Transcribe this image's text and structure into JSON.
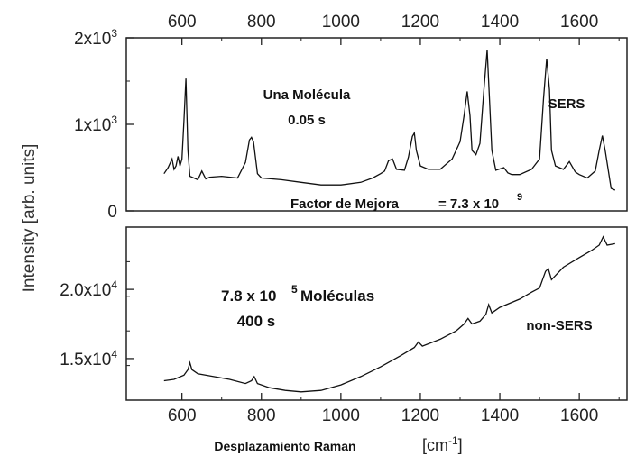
{
  "chart_data": {
    "type": "line",
    "xlabel": "Desplazamiento Raman",
    "xunit": "[cm-1]",
    "ylabel": "Intensity [arb. units]",
    "top_ticks": [
      "600",
      "800",
      "1000",
      "1200",
      "1400",
      "1600"
    ],
    "bottom_ticks": [
      "600",
      "800",
      "1000",
      "1200",
      "1400",
      "1600"
    ],
    "xlim": [
      460,
      1720
    ],
    "annotations": {
      "una_molecula": "Una Molécula",
      "time_single": "0.05 s",
      "sers": "SERS",
      "factor": "Factor de Mejora",
      "factor_value": "= 7.3 x 10",
      "factor_exp": "9",
      "molecules_base": "7.8 x 10",
      "molecules_exp": "5",
      "molecules_word": "Moléculas",
      "time_many": "400 s",
      "non_sers": "non-SERS"
    },
    "panels": [
      {
        "name": "SERS",
        "ylim": [
          0,
          2000
        ],
        "ytick_values": [
          0,
          1000,
          2000
        ],
        "ytick_labels": [
          "0",
          "1x10",
          "2x10"
        ],
        "ytick_exponents": [
          "",
          "3",
          "3"
        ],
        "x": [
          555,
          565,
          575,
          580,
          585,
          590,
          595,
          600,
          605,
          610,
          615,
          620,
          630,
          640,
          650,
          660,
          670,
          700,
          740,
          760,
          770,
          775,
          780,
          790,
          800,
          850,
          900,
          950,
          1000,
          1050,
          1080,
          1100,
          1110,
          1120,
          1130,
          1140,
          1160,
          1170,
          1180,
          1185,
          1190,
          1200,
          1220,
          1250,
          1280,
          1300,
          1310,
          1318,
          1325,
          1330,
          1340,
          1350,
          1360,
          1368,
          1375,
          1380,
          1390,
          1410,
          1420,
          1430,
          1450,
          1480,
          1500,
          1510,
          1518,
          1525,
          1530,
          1540,
          1560,
          1575,
          1590,
          1600,
          1620,
          1640,
          1650,
          1658,
          1665,
          1680,
          1690
        ],
        "y": [
          430,
          500,
          600,
          480,
          520,
          630,
          520,
          600,
          1040,
          1530,
          700,
          400,
          380,
          360,
          460,
          370,
          390,
          400,
          380,
          560,
          820,
          850,
          800,
          430,
          380,
          360,
          330,
          300,
          300,
          330,
          380,
          430,
          460,
          580,
          600,
          480,
          470,
          620,
          860,
          900,
          700,
          520,
          480,
          480,
          600,
          800,
          1100,
          1380,
          1100,
          700,
          650,
          780,
          1400,
          1860,
          1200,
          700,
          470,
          500,
          440,
          420,
          420,
          480,
          600,
          1300,
          1760,
          1400,
          700,
          520,
          480,
          570,
          450,
          420,
          380,
          460,
          700,
          870,
          700,
          260,
          240
        ]
      },
      {
        "name": "non-SERS",
        "ylim": [
          12000,
          24500
        ],
        "ytick_values": [
          15000,
          20000
        ],
        "ytick_labels": [
          "1.5x10",
          "2.0x10"
        ],
        "ytick_exponents": [
          "4",
          "4"
        ],
        "x": [
          555,
          580,
          605,
          615,
          620,
          625,
          640,
          680,
          720,
          760,
          775,
          782,
          790,
          820,
          860,
          900,
          950,
          1000,
          1050,
          1100,
          1150,
          1185,
          1195,
          1205,
          1250,
          1290,
          1310,
          1320,
          1330,
          1350,
          1365,
          1372,
          1380,
          1400,
          1450,
          1480,
          1500,
          1515,
          1522,
          1530,
          1560,
          1600,
          1630,
          1650,
          1660,
          1670,
          1690
        ],
        "y": [
          13400,
          13500,
          13800,
          14200,
          14700,
          14200,
          13900,
          13700,
          13500,
          13200,
          13400,
          13700,
          13200,
          12900,
          12700,
          12600,
          12700,
          13100,
          13700,
          14400,
          15200,
          15800,
          16200,
          15900,
          16400,
          17000,
          17500,
          17900,
          17500,
          17700,
          18200,
          18900,
          18300,
          18700,
          19300,
          19800,
          20100,
          21300,
          21500,
          20700,
          21600,
          22300,
          22800,
          23200,
          23800,
          23200,
          23300
        ]
      }
    ]
  }
}
